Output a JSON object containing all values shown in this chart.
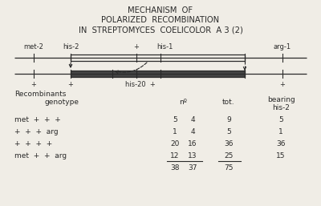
{
  "title_lines": [
    "MECHANISM  OF",
    "POLARIZED  RECOMBINATION",
    "IN  STREPTOMYCES  COELICOLOR  A 3 (2)"
  ],
  "background_color": "#f0ede6",
  "text_color": "#2a2a2a",
  "row_headers": [
    "met  +  +  +",
    "+  +  +  arg",
    "+  +  +  +",
    "met  +  +  arg"
  ],
  "col_n1": [
    "5",
    "1",
    "20",
    "12"
  ],
  "col_n2": [
    "4",
    "4",
    "16",
    "13"
  ],
  "col_tot": [
    "9",
    "5",
    "36",
    "25"
  ],
  "col_bearing": [
    "5",
    "1",
    "36",
    "15"
  ],
  "sum_n1": "38",
  "sum_n2": "37",
  "sum_tot": "75"
}
